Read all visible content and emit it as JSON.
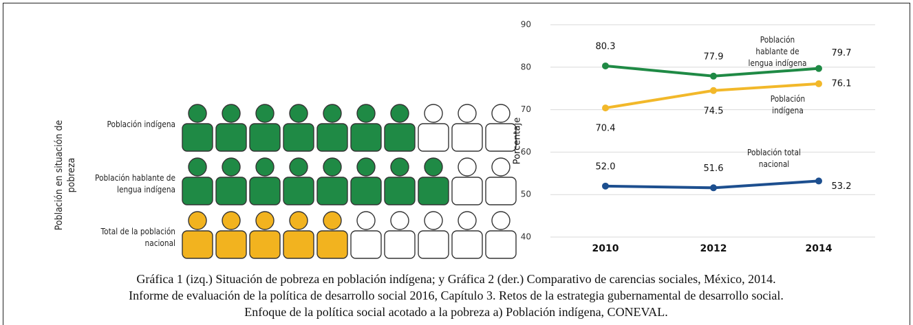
{
  "chart_data": [
    {
      "type": "pictogram",
      "ylabel": "Población en situación de pobreza",
      "total": 10,
      "categories": [
        "Población indígena",
        "Población hablante de lengua indígena",
        "Total de la población nacional"
      ],
      "values": [
        7,
        8,
        5
      ],
      "colors": [
        "#1f8a45",
        "#1f8a45",
        "#f2b31f"
      ]
    },
    {
      "type": "line",
      "ylabel": "Porcentaje",
      "categories": [
        "2010",
        "2012",
        "2014"
      ],
      "ylim": [
        40,
        90
      ],
      "yticks": [
        40,
        50,
        60,
        70,
        80,
        90
      ],
      "grid": true,
      "series": [
        {
          "name": "Población hablante de lengua indígena",
          "color": "#1f8a45",
          "values": [
            80.3,
            77.9,
            79.7
          ],
          "value_labels": [
            "80.3",
            "77.9",
            "79.7"
          ]
        },
        {
          "name": "Población indígena",
          "color": "#f2b82a",
          "values": [
            70.4,
            74.5,
            76.1
          ],
          "value_labels": [
            "70.4",
            "74.5",
            "76.1"
          ]
        },
        {
          "name": "Población total nacional",
          "color": "#1d4f8f",
          "values": [
            52,
            51.6,
            53.2
          ],
          "value_labels": [
            "52.0",
            "51.6",
            "53.2"
          ]
        }
      ]
    }
  ],
  "caption": [
    "Gráfica 1 (izq.) Situación de pobreza en población indígena; y Gráfica 2 (der.) Comparativo de carencias sociales, México, 2014.",
    "Informe de evaluación de la política de desarrollo social 2016, Capítulo 3. Retos de la estrategia gubernamental de desarrollo social.",
    "Enfoque de la política social acotado a la pobreza a) Población indígena, CONEVAL."
  ]
}
